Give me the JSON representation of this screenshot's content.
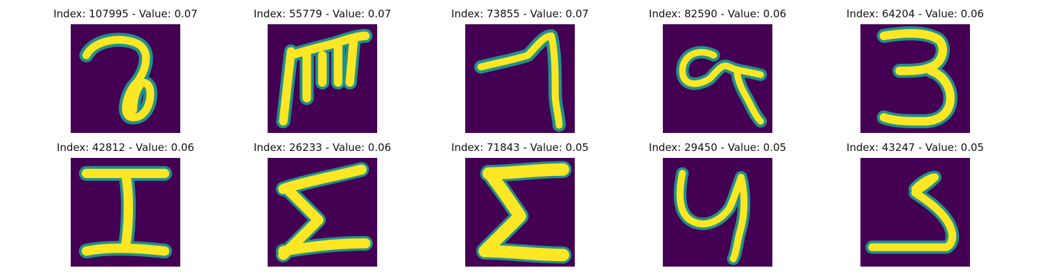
{
  "figure": {
    "panels": [
      {
        "title": "Index: 107995 - Value: 0.07",
        "glyph": "a-loop"
      },
      {
        "title": "Index: 55779 - Value: 0.07",
        "glyph": "m-scrawl"
      },
      {
        "title": "Index: 73855 - Value: 0.07",
        "glyph": "seven-hook"
      },
      {
        "title": "Index: 82590 - Value: 0.06",
        "glyph": "a-tail"
      },
      {
        "title": "Index: 64204 - Value: 0.06",
        "glyph": "three"
      },
      {
        "title": "Index: 42812 - Value: 0.06",
        "glyph": "I-serif"
      },
      {
        "title": "Index: 26233 - Value: 0.06",
        "glyph": "sigma"
      },
      {
        "title": "Index: 71843 - Value: 0.05",
        "glyph": "sigma-bold"
      },
      {
        "title": "Index: 29450 - Value: 0.05",
        "glyph": "y-loop"
      },
      {
        "title": "Index: 43247 - Value: 0.05",
        "glyph": "three-angular"
      }
    ],
    "colors": {
      "background_cell": "#440154",
      "stroke_mid": "#21918c",
      "stroke_core": "#fde725"
    }
  }
}
